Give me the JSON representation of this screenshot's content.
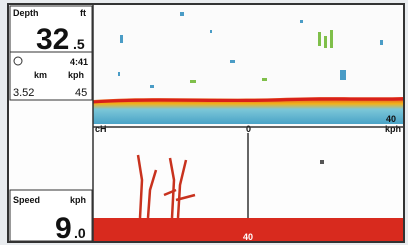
{
  "depth": {
    "label": "Depth",
    "unit": "ft",
    "whole": "32",
    "fraction": ".5"
  },
  "info": {
    "time": "4:41",
    "distance_unit": "km",
    "speed_unit": "kph",
    "distance": "3.52",
    "speed": "45"
  },
  "speed": {
    "label": "Speed",
    "unit": "kph",
    "whole": "9",
    "fraction": ".0"
  },
  "sonar": {
    "range_label": "40",
    "left_label": "cH",
    "center_label": "0",
    "right_unit": "kph"
  },
  "bottom_view": {
    "depth_label": "40"
  }
}
